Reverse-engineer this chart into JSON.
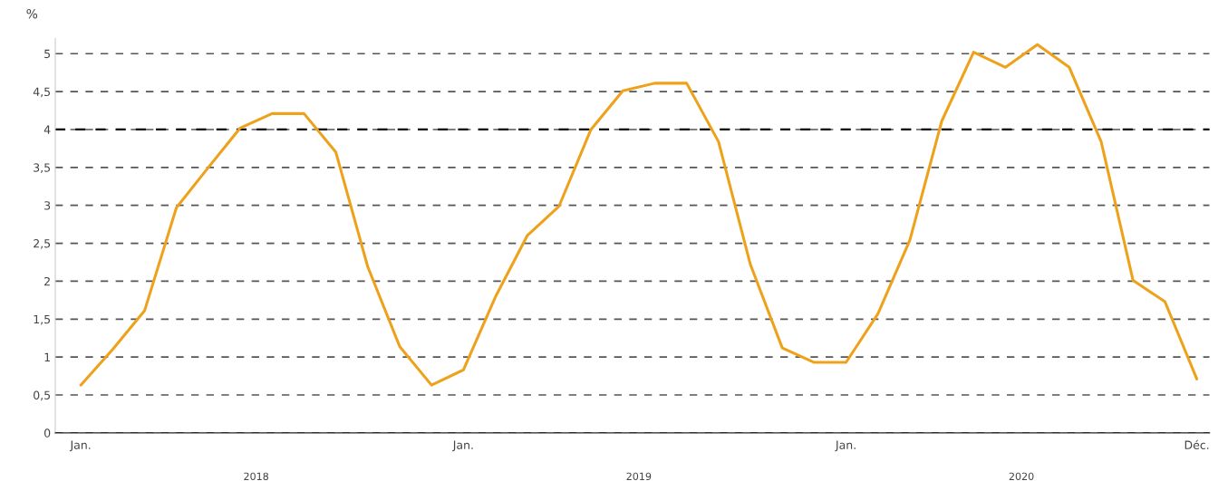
{
  "chart_data": {
    "type": "line",
    "ylabel": "%",
    "categories": [
      "Jan.",
      null,
      null,
      null,
      null,
      null,
      null,
      null,
      null,
      null,
      null,
      null,
      "Jan.",
      null,
      null,
      null,
      null,
      null,
      null,
      null,
      null,
      null,
      null,
      null,
      "Jan.",
      null,
      null,
      null,
      null,
      null,
      null,
      null,
      null,
      null,
      null,
      "Déc."
    ],
    "series": [
      {
        "color": "#eea21c",
        "values": [
          0.63,
          1.1,
          1.61,
          2.97,
          3.5,
          4.02,
          4.21,
          4.21,
          3.7,
          2.19,
          1.14,
          0.63,
          0.83,
          1.79,
          2.6,
          2.99,
          4.0,
          4.51,
          4.61,
          4.61,
          3.84,
          2.22,
          1.12,
          0.93,
          0.93,
          1.57,
          2.54,
          4.11,
          5.02,
          4.82,
          5.12,
          4.82,
          3.84,
          2.01,
          1.73,
          0.71
        ]
      }
    ],
    "ylim": [
      0,
      5.2
    ],
    "yticks": [
      0,
      {
        "value": 0.5,
        "label": "0,5"
      },
      1,
      {
        "value": 1.5,
        "label": "1,5"
      },
      2,
      {
        "value": 2.5,
        "label": "2,5"
      },
      3,
      {
        "value": 3.5,
        "label": "3,5"
      },
      4,
      {
        "value": 4.5,
        "label": "4,5"
      },
      5
    ],
    "grid": "y",
    "line_style": "solid",
    "marker": "none",
    "legend": false,
    "ref_lines": [
      {
        "axis": "y",
        "value": 4,
        "color": "#000000",
        "line_style": "dashed"
      }
    ],
    "annotations": [
      "2018",
      "2019",
      "2020"
    ]
  }
}
